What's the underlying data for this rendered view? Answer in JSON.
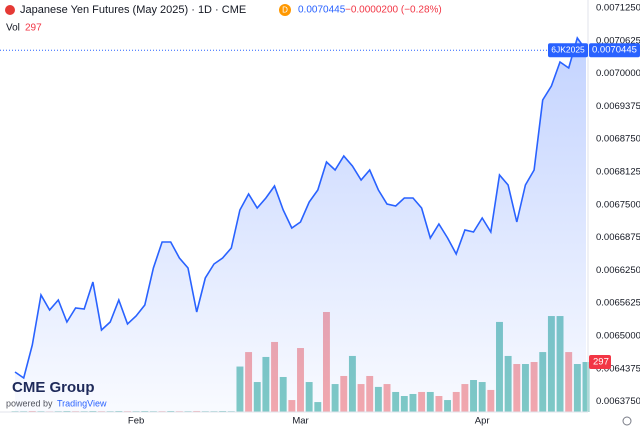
{
  "chart_data": {
    "type": "line",
    "title": "Japanese Yen Futures (May 2025) · 1D · CME",
    "interval_badge": "D",
    "last_price": "0.0070445",
    "change": "−0.0000200 (−0.28%)",
    "volume_label": "Vol",
    "volume_last": "297",
    "symbol_badge": "6JK2025",
    "logo": "CME Group",
    "powered_by": "powered by",
    "platform": "TradingView",
    "line_color": "#2962ff",
    "categories": [
      null,
      null,
      null,
      null,
      null,
      null,
      null,
      null,
      null,
      null,
      null,
      null,
      null,
      null,
      "Feb",
      null,
      null,
      null,
      null,
      null,
      null,
      null,
      null,
      null,
      null,
      null,
      null,
      null,
      null,
      null,
      null,
      null,
      null,
      "Mar",
      null,
      null,
      null,
      null,
      null,
      null,
      null,
      null,
      null,
      null,
      null,
      null,
      null,
      null,
      null,
      null,
      null,
      null,
      null,
      null,
      "Apr",
      null,
      null,
      null,
      null,
      null,
      null,
      null,
      null,
      null,
      null,
      null,
      null
    ],
    "series": [
      {
        "name": "6JK2025",
        "color": "#2962ff",
        "values": [
          0.0064314,
          0.00642,
          0.0064828,
          0.0065781,
          0.0065495,
          0.0065686,
          0.0065267,
          0.0065533,
          0.0065514,
          0.0066029,
          0.0065114,
          0.0065267,
          0.0065686,
          0.0065229,
          0.0065381,
          0.0065591,
          0.0066296,
          0.0066791,
          0.0066791,
          0.0066486,
          0.0066296,
          0.0065457,
          0.0066105,
          0.0066372,
          0.0066486,
          0.0066677,
          0.0067401,
          0.0067706,
          0.0067439,
          0.006763,
          0.0067858,
          0.0067401,
          0.0067058,
          0.0067172,
          0.0067553,
          0.0067782,
          0.0068316,
          0.0068163,
          0.006843,
          0.0068239,
          0.0067973,
          0.0068163,
          0.0067782,
          0.0067515,
          0.0067477,
          0.006763,
          0.006763,
          0.0067439,
          0.0066867,
          0.0067134,
          0.0066867,
          0.0066562,
          0.006702,
          0.0066982,
          0.0067248,
          0.0066982,
          0.0068068,
          0.0067877,
          0.0067172,
          0.0067877,
          0.0068163,
          0.0069497,
          0.0069764,
          0.0070221,
          0.0070107,
          0.0070678,
          0.0070445
        ]
      },
      {
        "name": "Vol",
        "values": [
          5,
          5,
          6,
          5,
          4,
          5,
          6,
          5,
          5,
          6,
          5,
          5,
          6,
          5,
          5,
          6,
          5,
          5,
          6,
          5,
          5,
          6,
          5,
          5,
          6,
          5,
          270,
          356,
          178,
          327,
          416,
          208,
          71,
          380,
          178,
          59,
          594,
          166,
          214,
          333,
          166,
          214,
          149,
          166,
          119,
          95,
          107,
          119,
          119,
          95,
          71,
          119,
          166,
          190,
          178,
          131,
          535,
          333,
          285,
          285,
          297,
          356,
          570,
          570,
          356,
          285,
          297
        ],
        "colors": [
          "#80cbc4",
          "#80cbc4",
          "#f7a9ab",
          "#80cbc4",
          "#f7a9ab",
          "#80cbc4",
          "#80cbc4",
          "#f7a9ab",
          "#80cbc4",
          "#80cbc4",
          "#f7a9ab",
          "#80cbc4",
          "#80cbc4",
          "#f7a9ab",
          "#80cbc4",
          "#80cbc4",
          "#80cbc4",
          "#f7a9ab",
          "#80cbc4",
          "#f7a9ab",
          "#80cbc4",
          "#f7a9ab",
          "#80cbc4",
          "#80cbc4",
          "#80cbc4",
          "#80cbc4",
          "#80cbc4",
          "#f7a9ab",
          "#80cbc4",
          "#80cbc4",
          "#f7a9ab",
          "#80cbc4",
          "#f7a9ab",
          "#f7a9ab",
          "#80cbc4",
          "#80cbc4",
          "#f7a9ab",
          "#80cbc4",
          "#f7a9ab",
          "#80cbc4",
          "#f7a9ab",
          "#f7a9ab",
          "#80cbc4",
          "#f7a9ab",
          "#80cbc4",
          "#80cbc4",
          "#80cbc4",
          "#f7a9ab",
          "#80cbc4",
          "#f7a9ab",
          "#80cbc4",
          "#f7a9ab",
          "#f7a9ab",
          "#80cbc4",
          "#80cbc4",
          "#f7a9ab",
          "#80cbc4",
          "#80cbc4",
          "#f7a9ab",
          "#80cbc4",
          "#f7a9ab",
          "#80cbc4",
          "#80cbc4",
          "#80cbc4",
          "#f7a9ab",
          "#80cbc4",
          "#80cbc4"
        ]
      }
    ],
    "ylim": [
      0.0063552,
      0.0071402
    ],
    "yticks": [
      {
        "value": 0.007125,
        "label": "0.0071250"
      },
      {
        "value": 0.0070625,
        "label": "0.0070625"
      },
      {
        "value": 0.007,
        "label": "0.0070000"
      },
      {
        "value": 0.0069375,
        "label": "0.0069375"
      },
      {
        "value": 0.006875,
        "label": "0.0068750"
      },
      {
        "value": 0.0068125,
        "label": "0.0068125"
      },
      {
        "value": 0.00675,
        "label": "0.0067500"
      },
      {
        "value": 0.0066875,
        "label": "0.0066875"
      },
      {
        "value": 0.006625,
        "label": "0.0066250"
      },
      {
        "value": 0.0065625,
        "label": "0.0065625"
      },
      {
        "value": 0.0065,
        "label": "0.0065000"
      },
      {
        "value": 0.0064375,
        "label": "0.0064375"
      },
      {
        "value": 0.006375,
        "label": "0.0063750"
      }
    ]
  }
}
